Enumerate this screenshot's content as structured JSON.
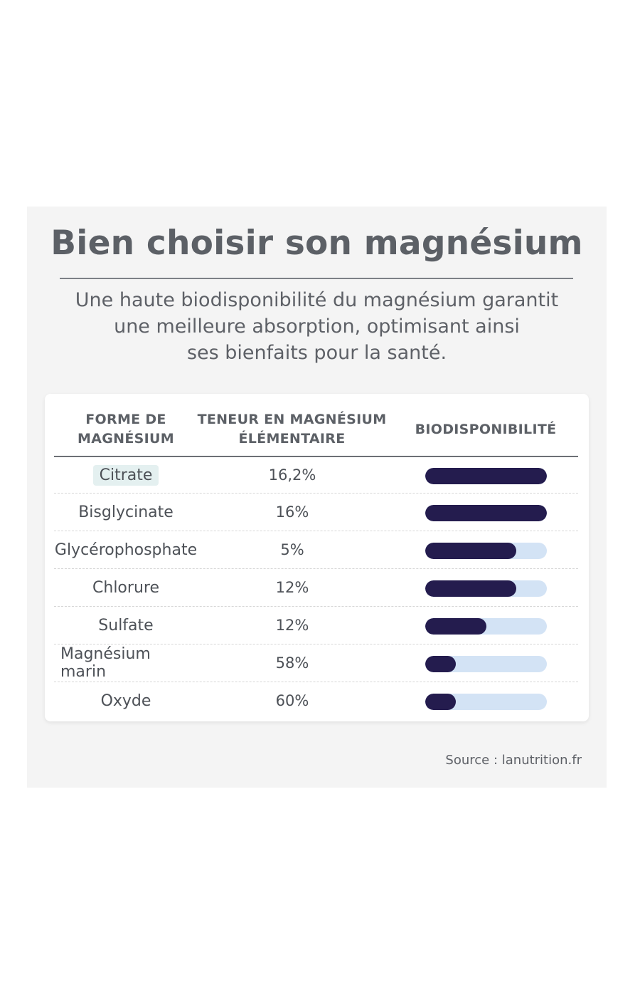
{
  "title": "Bien choisir son magnésium",
  "subtitle_lines": [
    "Une haute biodisponibilité du magnésium garantit",
    "une meilleure absorption, optimisant ainsi",
    "ses bienfaits pour la santé."
  ],
  "table": {
    "headers": {
      "form": [
        "FORME DE",
        "MAGNÉSIUM"
      ],
      "content": [
        "TENEUR EN MAGNÉSIUM",
        "ÉLÉMENTAIRE"
      ],
      "bioavailability": "BIODISPONIBILITÉ"
    }
  },
  "colors": {
    "bar_fill": "#241c4e",
    "bar_track": "#d3e3f5",
    "highlight": "#e4f0f0"
  },
  "chart_data": {
    "type": "table",
    "columns": [
      "FORME DE MAGNÉSIUM",
      "TENEUR EN MAGNÉSIUM ÉLÉMENTAIRE",
      "BIODISPONIBILITÉ"
    ],
    "rows": [
      {
        "form": "Citrate",
        "content": "16,2%",
        "bioavailability": 1.0,
        "highlighted": true
      },
      {
        "form": "Bisglycinate",
        "content": "16%",
        "bioavailability": 1.0
      },
      {
        "form": "Glycérophosphate",
        "content": "5%",
        "bioavailability": 0.75
      },
      {
        "form": "Chlorure",
        "content": "12%",
        "bioavailability": 0.75
      },
      {
        "form": "Sulfate",
        "content": "12%",
        "bioavailability": 0.5
      },
      {
        "form": "Magnésium marin",
        "content": "58%",
        "bioavailability": 0.25
      },
      {
        "form": "Oxyde",
        "content": "60%",
        "bioavailability": 0.25
      }
    ],
    "bioavailability_scale": [
      0,
      1
    ]
  },
  "source": "Source : lanutrition.fr"
}
